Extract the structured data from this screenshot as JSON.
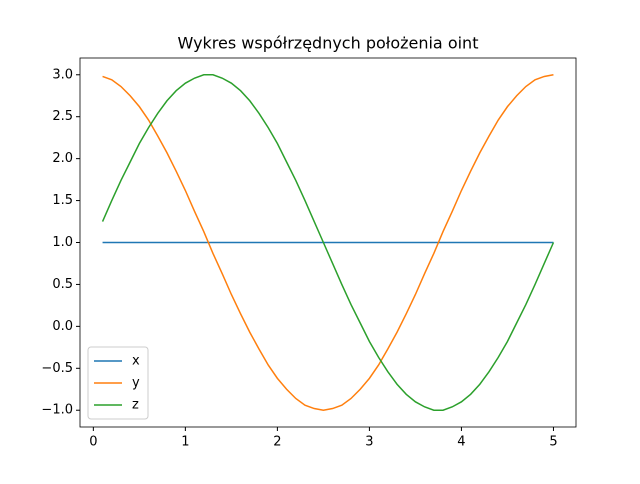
{
  "chart_data": {
    "type": "line",
    "title": "Wykres współrzędnych położenia oint",
    "x": [
      0.1,
      0.2,
      0.3,
      0.4,
      0.5,
      0.6,
      0.7,
      0.8,
      0.9,
      1.0,
      1.1,
      1.2,
      1.3,
      1.4,
      1.5,
      1.6,
      1.7,
      1.8,
      1.9,
      2.0,
      2.1,
      2.2,
      2.3,
      2.4,
      2.5,
      2.6,
      2.7,
      2.8,
      2.9,
      3.0,
      3.1,
      3.2,
      3.3,
      3.4,
      3.5,
      3.6,
      3.7,
      3.8,
      3.9,
      4.0,
      4.1,
      4.2,
      4.3,
      4.4,
      4.5,
      4.6,
      4.7,
      4.8,
      4.9,
      5.0
    ],
    "series": [
      {
        "name": "x",
        "color": "#1f77b4",
        "values": [
          1,
          1,
          1,
          1,
          1,
          1,
          1,
          1,
          1,
          1,
          1,
          1,
          1,
          1,
          1,
          1,
          1,
          1,
          1,
          1,
          1,
          1,
          1,
          1,
          1,
          1,
          1,
          1,
          1,
          1,
          1,
          1,
          1,
          1,
          1,
          1,
          1,
          1,
          1,
          1,
          1,
          1,
          1,
          1,
          1,
          1,
          1,
          1,
          1,
          1
        ]
      },
      {
        "name": "y",
        "color": "#ff7f0e",
        "values": [
          2.98,
          2.94,
          2.86,
          2.75,
          2.62,
          2.46,
          2.27,
          2.07,
          1.85,
          1.62,
          1.37,
          1.13,
          0.87,
          0.63,
          0.38,
          0.15,
          -0.07,
          -0.27,
          -0.46,
          -0.62,
          -0.75,
          -0.86,
          -0.94,
          -0.98,
          -1.0,
          -0.98,
          -0.94,
          -0.86,
          -0.75,
          -0.62,
          -0.46,
          -0.27,
          -0.07,
          0.15,
          0.38,
          0.63,
          0.87,
          1.13,
          1.37,
          1.62,
          1.85,
          2.07,
          2.27,
          2.46,
          2.62,
          2.75,
          2.86,
          2.94,
          2.98,
          3.0
        ]
      },
      {
        "name": "z",
        "color": "#2ca02c",
        "values": [
          1.25,
          1.5,
          1.74,
          1.96,
          2.18,
          2.37,
          2.54,
          2.69,
          2.81,
          2.9,
          2.96,
          3.0,
          3.0,
          2.96,
          2.9,
          2.81,
          2.69,
          2.54,
          2.37,
          2.18,
          1.96,
          1.74,
          1.5,
          1.25,
          1.0,
          0.75,
          0.5,
          0.26,
          0.04,
          -0.18,
          -0.37,
          -0.54,
          -0.69,
          -0.81,
          -0.9,
          -0.96,
          -1.0,
          -1.0,
          -0.96,
          -0.9,
          -0.81,
          -0.69,
          -0.54,
          -0.37,
          -0.18,
          0.04,
          0.26,
          0.5,
          0.75,
          1.0
        ]
      }
    ],
    "xlim": [
      -0.145,
      5.245
    ],
    "xticks": [
      0,
      1,
      2,
      3,
      4,
      5
    ],
    "ylim": [
      -1.2,
      3.2
    ],
    "yticks": [
      {
        "value": -1.0,
        "label": "−1.0"
      },
      {
        "value": -0.5,
        "label": "−0.5"
      },
      {
        "value": 0.0,
        "label": "0.0"
      },
      {
        "value": 0.5,
        "label": "0.5"
      },
      {
        "value": 1.0,
        "label": "1.0"
      },
      {
        "value": 1.5,
        "label": "1.5"
      },
      {
        "value": 2.0,
        "label": "2.0"
      },
      {
        "value": 2.5,
        "label": "2.5"
      },
      {
        "value": 3.0,
        "label": "3.0"
      }
    ],
    "legend": "lower left"
  }
}
